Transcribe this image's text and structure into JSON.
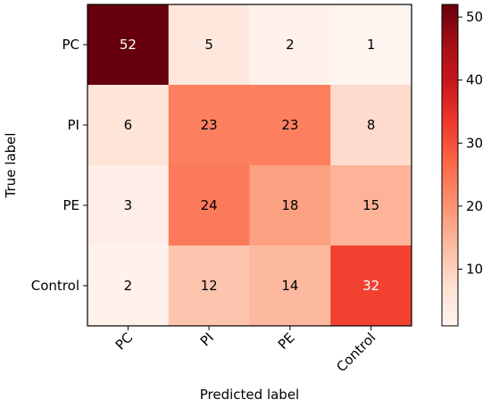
{
  "chart_data": {
    "type": "heatmap",
    "title": "",
    "xlabel": "Predicted label",
    "ylabel": "True label",
    "x_categories": [
      "PC",
      "PI",
      "PE",
      "Control"
    ],
    "y_categories": [
      "PC",
      "PI",
      "PE",
      "Control"
    ],
    "matrix": [
      [
        52,
        5,
        2,
        1
      ],
      [
        6,
        23,
        23,
        8
      ],
      [
        3,
        24,
        18,
        15
      ],
      [
        2,
        12,
        14,
        32
      ]
    ],
    "colorbar": {
      "ticks": [
        10,
        20,
        30,
        40,
        50
      ],
      "range": [
        1,
        52
      ],
      "colormap": "Reds"
    },
    "x_tick_rotation": "45deg"
  }
}
